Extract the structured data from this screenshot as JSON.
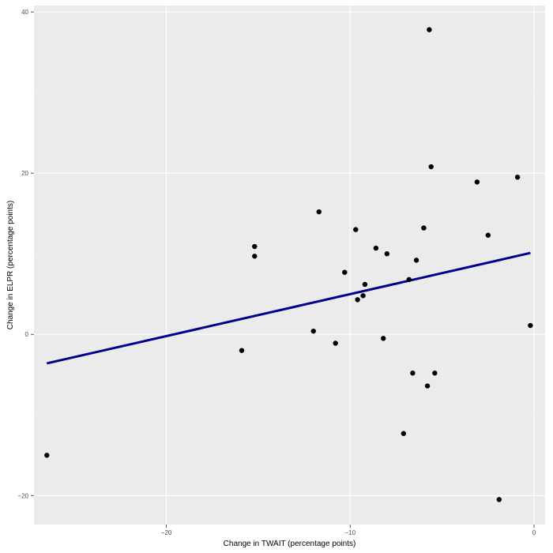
{
  "colors": {
    "panel": "#ebebeb",
    "grid_major": "#ffffff",
    "grid_minor": "#f2f2f2",
    "point": "#000000",
    "fit_line": "#00008b"
  },
  "chart_data": {
    "type": "scatter",
    "xlabel": "Change in TWAIT (percentage points)",
    "ylabel": "Change in ELPR (percentage points)",
    "xlim": [
      -27.2,
      0.6
    ],
    "ylim": [
      -23.6,
      40.8
    ],
    "x_ticks": [
      -20,
      -10,
      0
    ],
    "x_tick_labels": [
      "−20",
      "−10",
      "0"
    ],
    "y_ticks": [
      -20,
      0,
      20,
      40
    ],
    "y_tick_labels": [
      "−20",
      "0",
      "20",
      "40"
    ],
    "grid": true,
    "points": [
      {
        "x": -26.5,
        "y": -15.0
      },
      {
        "x": -15.9,
        "y": -2.0
      },
      {
        "x": -15.2,
        "y": 10.9
      },
      {
        "x": -15.2,
        "y": 9.7
      },
      {
        "x": -12.0,
        "y": 0.4
      },
      {
        "x": -11.7,
        "y": 15.2
      },
      {
        "x": -10.8,
        "y": -1.1
      },
      {
        "x": -10.3,
        "y": 7.7
      },
      {
        "x": -9.7,
        "y": 13.0
      },
      {
        "x": -9.6,
        "y": 4.3
      },
      {
        "x": -9.3,
        "y": 4.8
      },
      {
        "x": -9.2,
        "y": 6.2
      },
      {
        "x": -8.6,
        "y": 10.7
      },
      {
        "x": -8.2,
        "y": -0.5
      },
      {
        "x": -8.0,
        "y": 10.0
      },
      {
        "x": -7.1,
        "y": -12.3
      },
      {
        "x": -6.8,
        "y": 6.8
      },
      {
        "x": -6.6,
        "y": -4.8
      },
      {
        "x": -6.4,
        "y": 9.2
      },
      {
        "x": -6.0,
        "y": 13.2
      },
      {
        "x": -5.8,
        "y": -6.4
      },
      {
        "x": -5.7,
        "y": 37.8
      },
      {
        "x": -5.6,
        "y": 20.8
      },
      {
        "x": -5.4,
        "y": -4.8
      },
      {
        "x": -3.1,
        "y": 18.9
      },
      {
        "x": -2.5,
        "y": 12.3
      },
      {
        "x": -1.9,
        "y": -20.5
      },
      {
        "x": -0.9,
        "y": 19.5
      },
      {
        "x": -0.2,
        "y": 1.1
      }
    ],
    "fit_line": {
      "x": [
        -26.5,
        -0.2
      ],
      "y": [
        -3.6,
        10.1
      ]
    }
  }
}
